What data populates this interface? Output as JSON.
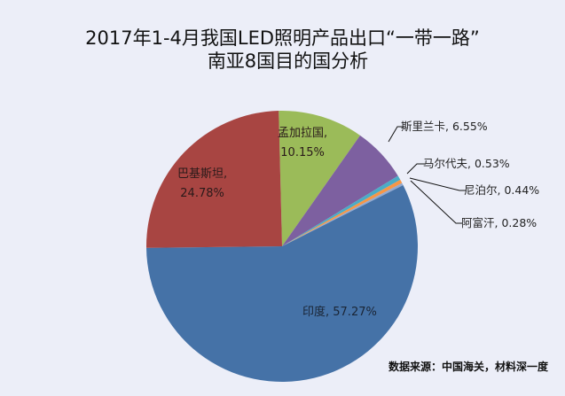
{
  "title": {
    "line1": "2017年1-4月我国LED照明产品出口“一带一路”",
    "line2": "南亚8国目的国分析"
  },
  "source_note": "数据来源：中国海关，材料深一度",
  "colors": {
    "background": "#ECEEF8",
    "india": "#4572A7",
    "pakistan": "#A84542",
    "bangladesh": "#9BBB59",
    "sri_lanka": "#7D60A0",
    "maldives": "#4BACC6",
    "nepal": "#F79646",
    "afghanistan": "#92A9CF"
  },
  "chart_data": {
    "type": "pie",
    "title": "2017年1-4月我国LED照明产品出口“一带一路”南亚8国目的国分析",
    "categories": [
      "孟加拉国",
      "斯里兰卡",
      "马尔代夫",
      "尼泊尔",
      "阿富汗",
      "印度",
      "巴基斯坦"
    ],
    "values": [
      10.15,
      6.55,
      0.53,
      0.44,
      0.28,
      57.27,
      24.78
    ],
    "unit": "%",
    "start_angle_deg": 0,
    "direction": "clockwise",
    "legend": "none (data labels)",
    "labels": [
      {
        "name": "孟加拉国",
        "text": "孟加拉国,",
        "pct": "10.15%"
      },
      {
        "name": "斯里兰卡",
        "text": "斯里兰卡, 6.55%"
      },
      {
        "name": "马尔代夫",
        "text": "马尔代夫, 0.53%"
      },
      {
        "name": "尼泊尔",
        "text": "尼泊尔, 0.44%"
      },
      {
        "name": "阿富汗",
        "text": "阿富汗, 0.28%"
      },
      {
        "name": "印度",
        "text": "印度, 57.27%"
      },
      {
        "name": "巴基斯坦",
        "text": "巴基斯坦,",
        "pct": "24.78%"
      }
    ]
  }
}
